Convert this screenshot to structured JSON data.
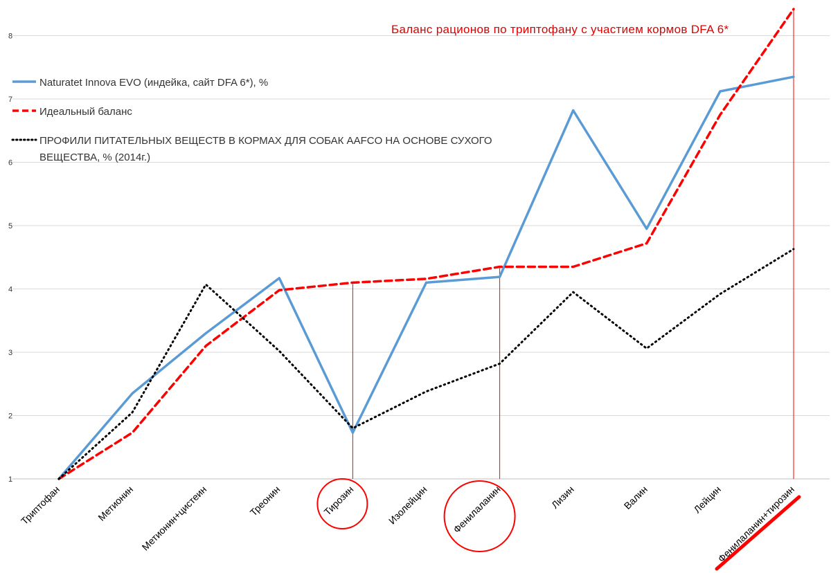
{
  "chart_data": {
    "type": "line",
    "title": "Баланс рационов  по триптофану  с участием  кормов DFA 6*",
    "categories": [
      "Триптофан",
      "Метионин",
      "Метионин+цистеин",
      "Треонин",
      "Тирозин",
      "Изолейцин",
      "Фенилаланин",
      "Лизин",
      "Валин",
      "Лейцин",
      "Фенилаланин+тирозин"
    ],
    "ylim": [
      1,
      8.4
    ],
    "yticks": [
      "1",
      "2",
      "3",
      "4",
      "5",
      "6",
      "7",
      "8"
    ],
    "grid": true,
    "legend_position": "top-left",
    "series": [
      {
        "name": "Naturatet Innova EVO (индейка, сайт DFA 6*), %",
        "values": [
          1.0,
          2.35,
          3.3,
          4.17,
          1.73,
          4.1,
          4.19,
          6.82,
          4.95,
          7.12,
          7.35
        ],
        "color": "#5b9bd5",
        "style": "solid"
      },
      {
        "name": "Идеальный баланс",
        "values": [
          1.0,
          1.73,
          3.1,
          3.98,
          4.1,
          4.16,
          4.35,
          4.35,
          4.72,
          6.75,
          8.42
        ],
        "color": "#ff0000",
        "style": "dashed"
      },
      {
        "name_lines": [
          "ПРОФИЛИ ПИТАТЕЛЬНЫХ ВЕЩЕСТВ В КОРМАХ ДЛЯ СОБАК AAFCO НА ОСНОВЕ СУХОГО",
          "ВЕЩЕСТВА, % (2014г.)"
        ],
        "values": [
          1.0,
          2.05,
          4.07,
          3.02,
          1.8,
          2.38,
          2.82,
          3.95,
          3.06,
          3.92,
          4.63
        ],
        "color": "#000000",
        "style": "dotted"
      }
    ],
    "annotations": {
      "color": "#ff0000",
      "vertical_markers": [
        "Тирозин",
        "Фенилаланин",
        "Фенилаланин+тирозин"
      ],
      "circled_categories": [
        "Тирозин",
        "Фенилаланин"
      ],
      "underlined_category": "Фенилаланин+тирозин"
    }
  }
}
